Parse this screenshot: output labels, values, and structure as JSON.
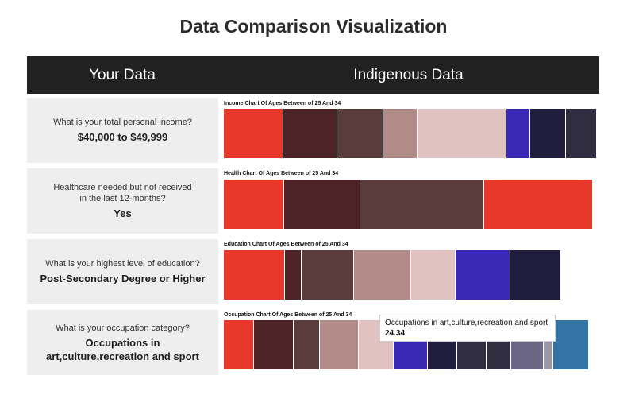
{
  "page": {
    "title": "Data Comparison Visualization",
    "header_left": "Your Data",
    "header_right": "Indigenous Data"
  },
  "rows": [
    {
      "question": "What is your total personal income?",
      "answer": "$40,000 to $49,999",
      "chart_title": "Income Chart Of Ages Between of 25 And 34"
    },
    {
      "question": "Healthcare needed but not received in the last 12-months?",
      "answer": "Yes",
      "chart_title": "Health Chart Of Ages Between of 25 And 34"
    },
    {
      "question": "What is your highest level of education?",
      "answer": "Post-Secondary Degree or Higher",
      "chart_title": "Education Chart Of Ages Between of 25 And 34"
    },
    {
      "question": "What is your occupation category?",
      "answer": "Occupations in art,culture,recreation and sport",
      "chart_title": "Occupation Chart Of Ages Between of 25 And 34"
    }
  ],
  "tooltip": {
    "label": "Occupations in art,culture,recreation and sport",
    "value": "24.34"
  },
  "colors": {
    "highlight": "#e8382b",
    "active_highlight": "#3474a4"
  },
  "chart_data": [
    {
      "type": "bar",
      "orientation": "horizontal-stacked",
      "title": "Income Chart Of Ages Between of 25 And 34",
      "values": [
        75,
        68,
        58,
        43,
        112,
        30,
        45,
        39,
        2
      ],
      "colors": [
        "#e8382b",
        "#4e2327",
        "#5b3c3d",
        "#b28a87",
        "#e0c2c0",
        "#3929b3",
        "#211d3f",
        "#302d40",
        "#ffffff"
      ]
    },
    {
      "type": "bar",
      "orientation": "horizontal-stacked",
      "title": "Health Chart Of Ages Between of 25 And 34",
      "values": [
        76,
        96,
        156,
        137
      ],
      "colors": [
        "#e8382b",
        "#4e2327",
        "#5b3c3d",
        "#e8382b"
      ]
    },
    {
      "type": "bar",
      "orientation": "horizontal-stacked",
      "title": "Education Chart Of Ages Between of 25 And 34",
      "values": [
        77,
        21,
        66,
        72,
        56,
        69,
        64
      ],
      "colors": [
        "#e8382b",
        "#4e2327",
        "#5b3c3d",
        "#b28a87",
        "#e0c2c0",
        "#3929b3",
        "#211d3f"
      ]
    },
    {
      "type": "bar",
      "orientation": "horizontal-stacked",
      "title": "Occupation Chart Of Ages Between of 25 And 34",
      "values": [
        38,
        50,
        33,
        49,
        44,
        43,
        37,
        37,
        31,
        41,
        12,
        45
      ],
      "colors": [
        "#e8382b",
        "#4e2327",
        "#5b3c3d",
        "#b28a87",
        "#e0c2c0",
        "#3929b3",
        "#211d3f",
        "#302d40",
        "#302d40",
        "#6a6683",
        "#9a97a8",
        "#3474a4"
      ],
      "highlighted_value": 24.34
    }
  ]
}
